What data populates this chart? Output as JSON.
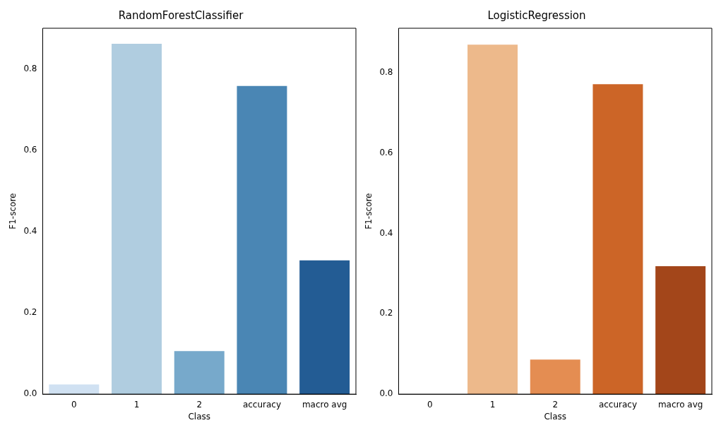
{
  "chart_data": [
    {
      "type": "bar",
      "title": "RandomForestClassifier",
      "xlabel": "Class",
      "ylabel": "F1-score",
      "categories": [
        "0",
        "1",
        "2",
        "accuracy",
        "macro avg"
      ],
      "values": [
        0.024,
        0.862,
        0.106,
        0.758,
        0.329
      ],
      "colors": [
        "#d0e1f2",
        "#b0cde0",
        "#77a9cb",
        "#4a86b4",
        "#235c94"
      ],
      "ylim": [
        0,
        0.9
      ],
      "yticks": [
        {
          "value": 0,
          "label": "0.0"
        },
        0.2,
        0.4,
        0.6,
        0.8
      ],
      "grid": false
    },
    {
      "type": "bar",
      "title": "LogisticRegression",
      "xlabel": "Class",
      "ylabel": "F1-score",
      "categories": [
        "0",
        "1",
        "2",
        "accuracy",
        "macro avg"
      ],
      "values": [
        0,
        0.869,
        0.086,
        0.771,
        0.318
      ],
      "colors": [
        "#fdd9b4",
        "#edb98b",
        "#e48d52",
        "#cc6527",
        "#a3461a"
      ],
      "ylim": [
        0,
        0.91
      ],
      "yticks": [
        {
          "value": 0,
          "label": "0.0"
        },
        0.2,
        0.4,
        0.6,
        0.8
      ],
      "grid": false
    }
  ]
}
